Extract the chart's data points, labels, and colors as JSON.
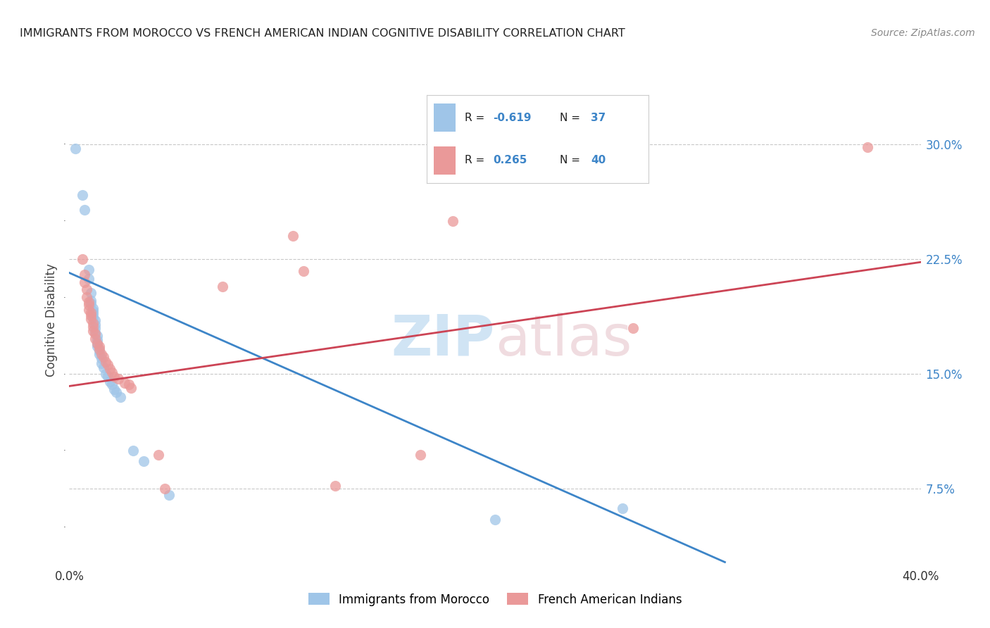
{
  "title": "IMMIGRANTS FROM MOROCCO VS FRENCH AMERICAN INDIAN COGNITIVE DISABILITY CORRELATION CHART",
  "source": "Source: ZipAtlas.com",
  "ylabel": "Cognitive Disability",
  "ytick_labels": [
    "7.5%",
    "15.0%",
    "22.5%",
    "30.0%"
  ],
  "ytick_values": [
    0.075,
    0.15,
    0.225,
    0.3
  ],
  "xlim": [
    0.0,
    0.4
  ],
  "ylim": [
    0.025,
    0.345
  ],
  "legend_label1": "Immigrants from Morocco",
  "legend_label2": "French American Indians",
  "scatter_blue": [
    [
      0.003,
      0.297
    ],
    [
      0.006,
      0.267
    ],
    [
      0.007,
      0.257
    ],
    [
      0.009,
      0.218
    ],
    [
      0.009,
      0.212
    ],
    [
      0.01,
      0.203
    ],
    [
      0.01,
      0.198
    ],
    [
      0.01,
      0.196
    ],
    [
      0.011,
      0.193
    ],
    [
      0.011,
      0.191
    ],
    [
      0.011,
      0.189
    ],
    [
      0.011,
      0.187
    ],
    [
      0.012,
      0.185
    ],
    [
      0.012,
      0.182
    ],
    [
      0.012,
      0.18
    ],
    [
      0.012,
      0.177
    ],
    [
      0.013,
      0.175
    ],
    [
      0.013,
      0.172
    ],
    [
      0.013,
      0.17
    ],
    [
      0.013,
      0.168
    ],
    [
      0.014,
      0.165
    ],
    [
      0.014,
      0.163
    ],
    [
      0.015,
      0.16
    ],
    [
      0.015,
      0.157
    ],
    [
      0.016,
      0.154
    ],
    [
      0.017,
      0.15
    ],
    [
      0.018,
      0.148
    ],
    [
      0.019,
      0.145
    ],
    [
      0.02,
      0.143
    ],
    [
      0.021,
      0.14
    ],
    [
      0.022,
      0.138
    ],
    [
      0.024,
      0.135
    ],
    [
      0.03,
      0.1
    ],
    [
      0.035,
      0.093
    ],
    [
      0.047,
      0.071
    ],
    [
      0.2,
      0.055
    ],
    [
      0.26,
      0.062
    ]
  ],
  "scatter_pink": [
    [
      0.006,
      0.225
    ],
    [
      0.007,
      0.215
    ],
    [
      0.007,
      0.21
    ],
    [
      0.008,
      0.205
    ],
    [
      0.008,
      0.2
    ],
    [
      0.009,
      0.197
    ],
    [
      0.009,
      0.195
    ],
    [
      0.009,
      0.192
    ],
    [
      0.01,
      0.19
    ],
    [
      0.01,
      0.188
    ],
    [
      0.01,
      0.186
    ],
    [
      0.011,
      0.183
    ],
    [
      0.011,
      0.181
    ],
    [
      0.011,
      0.178
    ],
    [
      0.012,
      0.176
    ],
    [
      0.012,
      0.173
    ],
    [
      0.013,
      0.17
    ],
    [
      0.014,
      0.168
    ],
    [
      0.014,
      0.166
    ],
    [
      0.015,
      0.163
    ],
    [
      0.016,
      0.161
    ],
    [
      0.017,
      0.158
    ],
    [
      0.018,
      0.156
    ],
    [
      0.019,
      0.153
    ],
    [
      0.02,
      0.151
    ],
    [
      0.021,
      0.148
    ],
    [
      0.023,
      0.147
    ],
    [
      0.026,
      0.144
    ],
    [
      0.028,
      0.143
    ],
    [
      0.029,
      0.141
    ],
    [
      0.042,
      0.097
    ],
    [
      0.045,
      0.075
    ],
    [
      0.072,
      0.207
    ],
    [
      0.105,
      0.24
    ],
    [
      0.11,
      0.217
    ],
    [
      0.125,
      0.077
    ],
    [
      0.165,
      0.097
    ],
    [
      0.18,
      0.25
    ],
    [
      0.265,
      0.18
    ],
    [
      0.375,
      0.298
    ]
  ],
  "blue_line_x": [
    0.0,
    0.308
  ],
  "blue_line_y": [
    0.216,
    0.027
  ],
  "pink_line_x": [
    0.0,
    0.4
  ],
  "pink_line_y": [
    0.142,
    0.223
  ],
  "color_blue": "#9fc5e8",
  "color_pink": "#ea9999",
  "color_blue_line": "#3d85c8",
  "color_pink_line": "#cc4455",
  "grid_color": "#c8c8c8",
  "watermark_zip_color": "#d0e4f4",
  "watermark_atlas_color": "#f0dce0"
}
